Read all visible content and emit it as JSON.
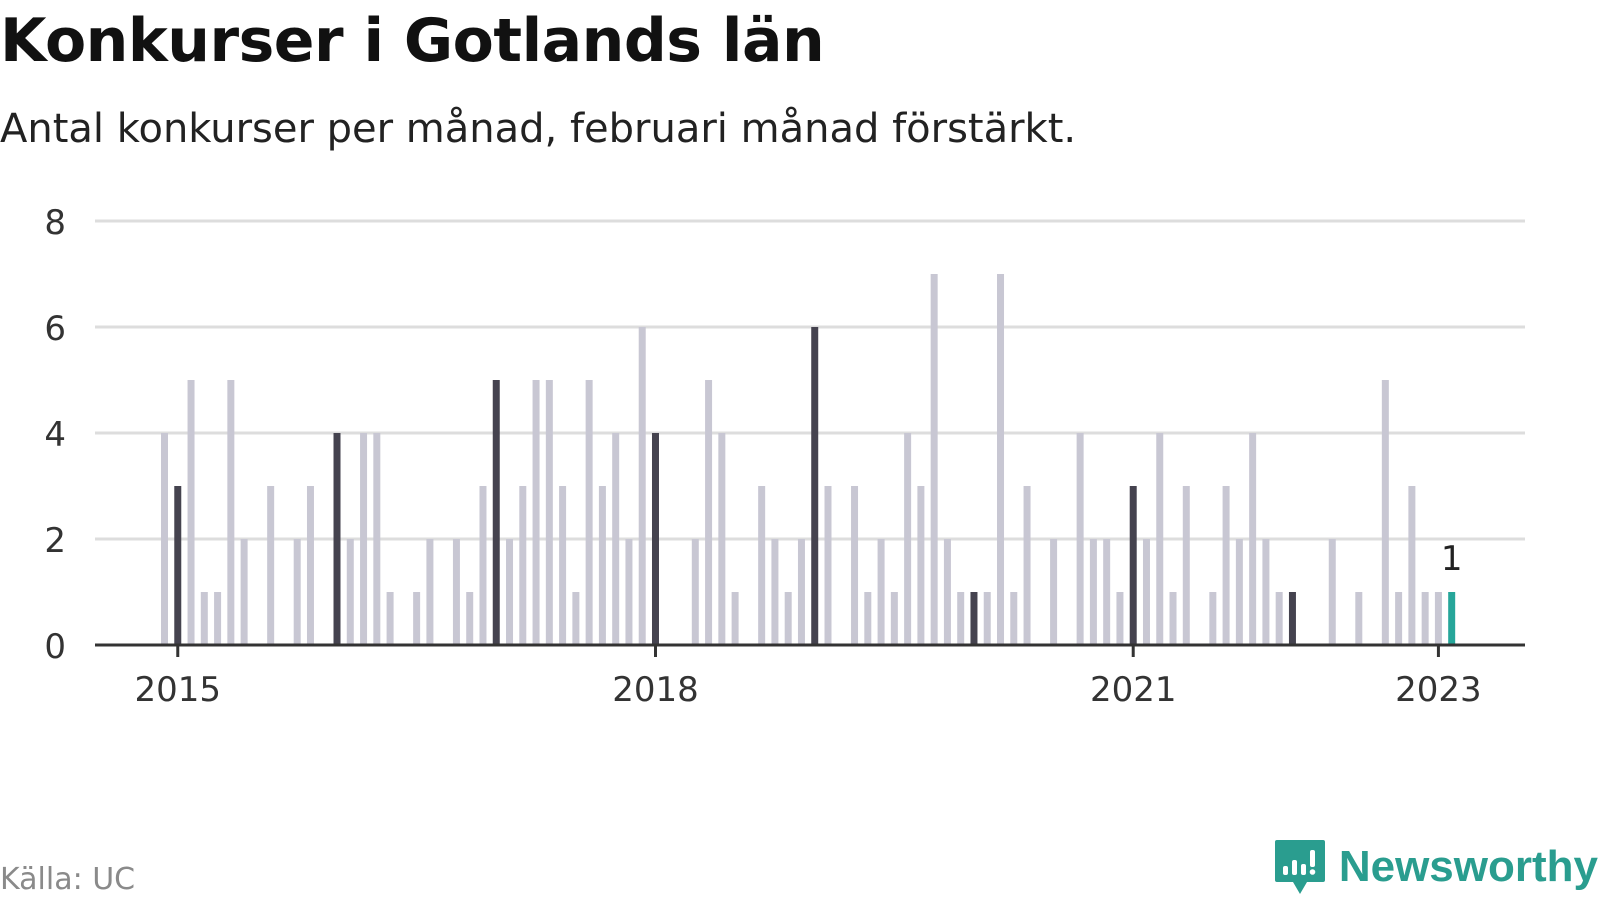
{
  "title": "Konkurser i Gotlands län",
  "subtitle": "Antal konkurser per månad, februari månad förstärkt.",
  "source": "Källa: UC",
  "brand": {
    "name": "Newsworthy",
    "icon": "newsworthy-logo-icon",
    "color": "#2a9d8f"
  },
  "colors": {
    "normal": "#c8c7d3",
    "highlight": "#45434f",
    "latest": "#26a69a",
    "grid": "#dddddd",
    "axis": "#333333"
  },
  "chart_data": {
    "type": "bar",
    "start_month": "2015-01",
    "x": [
      "2015-01",
      "2015-02",
      "2015-03",
      "2015-04",
      "2015-05",
      "2015-06",
      "2015-07",
      "2015-08",
      "2015-09",
      "2015-10",
      "2015-11",
      "2015-12",
      "2016-01",
      "2016-02",
      "2016-03",
      "2016-04",
      "2016-05",
      "2016-06",
      "2016-07",
      "2016-08",
      "2016-09",
      "2016-10",
      "2016-11",
      "2016-12",
      "2017-01",
      "2017-02",
      "2017-03",
      "2017-04",
      "2017-05",
      "2017-06",
      "2017-07",
      "2017-08",
      "2017-09",
      "2017-10",
      "2017-11",
      "2017-12",
      "2018-01",
      "2018-02",
      "2018-03",
      "2018-04",
      "2018-05",
      "2018-06",
      "2018-07",
      "2018-08",
      "2018-09",
      "2018-10",
      "2018-11",
      "2018-12",
      "2019-01",
      "2019-02",
      "2019-03",
      "2019-04",
      "2019-05",
      "2019-06",
      "2019-07",
      "2019-08",
      "2019-09",
      "2019-10",
      "2019-11",
      "2019-12",
      "2020-01",
      "2020-02",
      "2020-03",
      "2020-04",
      "2020-05",
      "2020-06",
      "2020-07",
      "2020-08",
      "2020-09",
      "2020-10",
      "2020-11",
      "2020-12",
      "2021-01",
      "2021-02",
      "2021-03",
      "2021-04",
      "2021-05",
      "2021-06",
      "2021-07",
      "2021-08",
      "2021-09",
      "2021-10",
      "2021-11",
      "2021-12",
      "2022-01",
      "2022-02",
      "2022-03",
      "2022-04",
      "2022-05",
      "2022-06",
      "2022-07",
      "2022-08",
      "2022-09",
      "2022-10",
      "2022-11",
      "2022-12",
      "2023-01",
      "2023-02"
    ],
    "values": [
      4,
      3,
      5,
      1,
      1,
      5,
      2,
      0,
      3,
      0,
      2,
      3,
      0,
      4,
      2,
      4,
      4,
      1,
      0,
      1,
      2,
      0,
      2,
      1,
      3,
      5,
      2,
      3,
      5,
      5,
      3,
      1,
      5,
      3,
      4,
      2,
      6,
      4,
      0,
      0,
      2,
      5,
      4,
      1,
      0,
      3,
      2,
      1,
      2,
      6,
      3,
      0,
      3,
      1,
      2,
      1,
      4,
      3,
      7,
      2,
      1,
      1,
      1,
      7,
      1,
      3,
      0,
      2,
      0,
      4,
      2,
      2,
      1,
      3,
      2,
      4,
      1,
      3,
      0,
      1,
      3,
      2,
      4,
      2,
      1,
      1,
      0,
      0,
      2,
      0,
      1,
      0,
      5,
      1,
      3,
      1,
      1,
      1
    ],
    "highlight": "february",
    "latest_label": "1",
    "ylim": [
      0,
      8
    ],
    "yticks": [
      0,
      2,
      4,
      6,
      8
    ],
    "xticks": [
      {
        "label": "2015",
        "month": "2015-02"
      },
      {
        "label": "2018",
        "month": "2018-02"
      },
      {
        "label": "2021",
        "month": "2021-02"
      },
      {
        "label": "2023",
        "month": "2023-01"
      }
    ],
    "xlabel": "",
    "ylabel": "",
    "grid": true
  }
}
